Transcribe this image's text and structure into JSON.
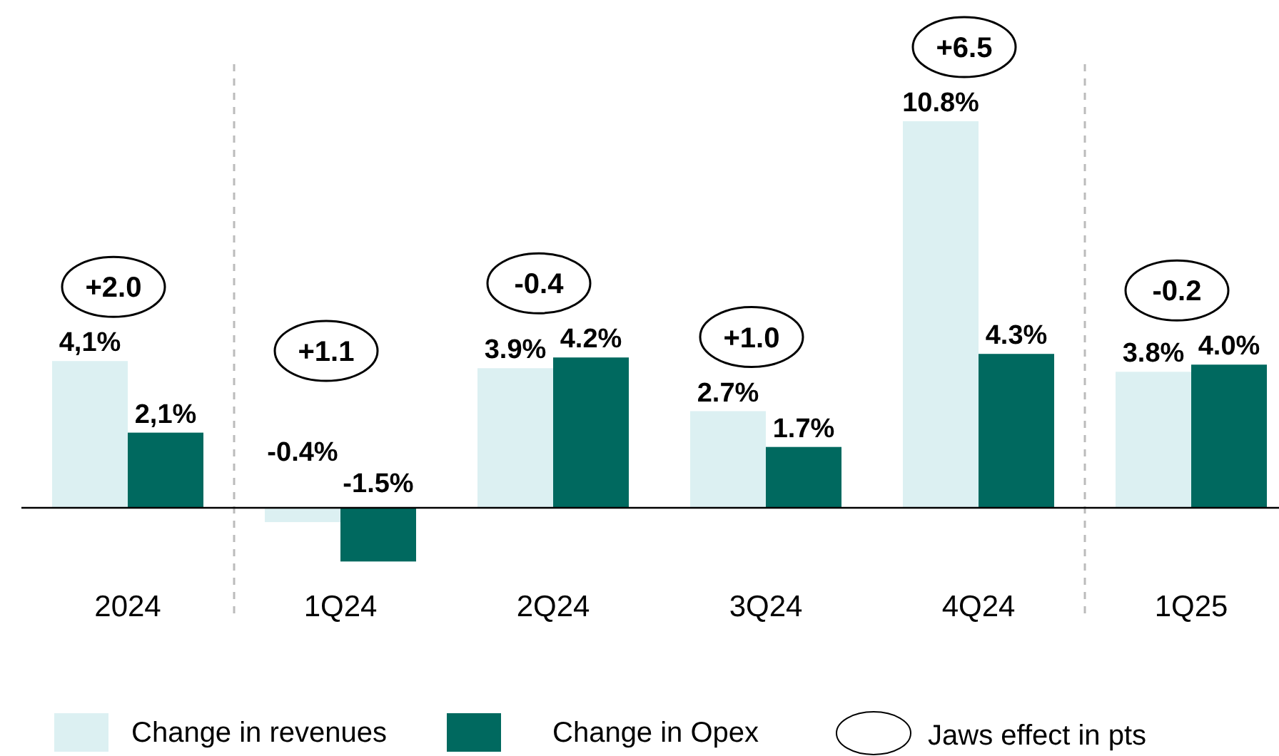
{
  "chart_data": {
    "type": "bar",
    "categories": [
      "2024",
      "1Q24",
      "2Q24",
      "3Q24",
      "4Q24",
      "1Q25"
    ],
    "series": [
      {
        "name": "Change in revenues",
        "color": "#dcf0f2",
        "values": [
          4.1,
          -0.4,
          3.9,
          2.7,
          10.8,
          3.8
        ],
        "value_labels": [
          "4,1%",
          "-0.4%",
          "3.9%",
          "2.7%",
          "10.8%",
          "3.8%"
        ]
      },
      {
        "name": "Change in Opex",
        "color": "#00695f",
        "values": [
          2.1,
          -1.5,
          4.2,
          1.7,
          4.3,
          4.0
        ],
        "value_labels": [
          "2,1%",
          "-1.5%",
          "4.2%",
          "1.7%",
          "4.3%",
          "4.0%"
        ]
      }
    ],
    "tick_labels": "x",
    "annotations": [
      "+2.0",
      "+1.1",
      "-0.4",
      "+1.0",
      "+6.5",
      "-0.2",
      "Jaws effect in pts"
    ],
    "legend": "bottom"
  }
}
